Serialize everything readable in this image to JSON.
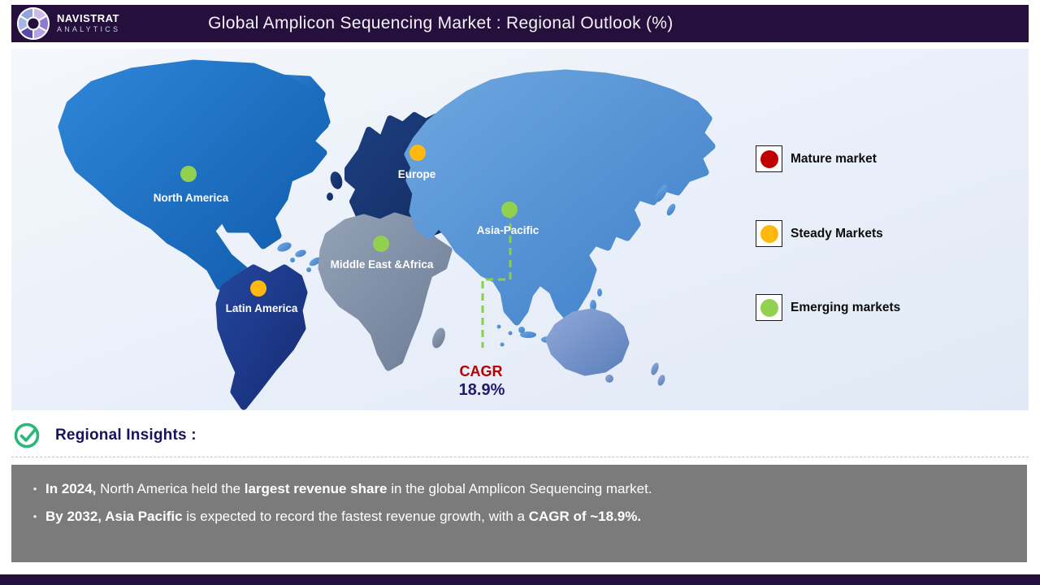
{
  "header": {
    "brand": {
      "line1": "NAVISTRAT",
      "line2": "ANALYTICS"
    },
    "title": "Global Amplicon Sequencing Market : Regional Outlook (%)"
  },
  "map": {
    "labels": {
      "north_america": "North America",
      "latin_america": "Latin America",
      "europe": "Europe",
      "middle_east_africa": "Middle East &Africa",
      "asia_pacific": "Asia-Pacific"
    },
    "cagr": {
      "label": "CAGR",
      "value": "18.9%"
    }
  },
  "markers": {
    "north_america": "#92d050",
    "latin_america": "#ffb80e",
    "europe": "#ffb80e",
    "middle_east_africa": "#92d050",
    "asia_pacific": "#92d050"
  },
  "legend": [
    {
      "label": "Mature market",
      "color": "#c00000"
    },
    {
      "label": "Steady Markets",
      "color": "#ffb80e"
    },
    {
      "label": "Emerging markets",
      "color": "#92d050"
    }
  ],
  "insights": {
    "heading": "Regional Insights :",
    "bullets": [
      [
        {
          "text": "In 2024,",
          "bold": true
        },
        {
          "text": " North America held the ",
          "bold": false
        },
        {
          "text": "largest revenue share",
          "bold": true
        },
        {
          "text": " in the global Amplicon Sequencing market.",
          "bold": false
        }
      ],
      [
        {
          "text": "By 2032, Asia Pacific",
          "bold": true
        },
        {
          "text": " is expected to record the fastest revenue growth, with a ",
          "bold": false
        },
        {
          "text": "CAGR of ~18.9%.",
          "bold": true
        }
      ]
    ]
  },
  "chart_data": {
    "type": "map",
    "title": "Global Amplicon Sequencing Market : Regional Outlook (%)",
    "regions": [
      {
        "name": "North America",
        "status": "Emerging markets marker (green)"
      },
      {
        "name": "Latin America",
        "status": "Steady Markets marker (orange)"
      },
      {
        "name": "Europe",
        "status": "Steady Markets marker (orange)"
      },
      {
        "name": "Middle East & Africa",
        "status": "Emerging markets marker (green)"
      },
      {
        "name": "Asia-Pacific",
        "status": "Emerging markets marker (green), CAGR 18.9%"
      }
    ],
    "legend": [
      "Mature market",
      "Steady Markets",
      "Emerging markets"
    ],
    "annotations": [
      "CAGR 18.9% callout linked to Asia-Pacific",
      "In 2024, North America held the largest revenue share in the global Amplicon Sequencing market.",
      "By 2032, Asia Pacific is expected to record the fastest revenue growth, with a CAGR of ~18.9%."
    ]
  }
}
